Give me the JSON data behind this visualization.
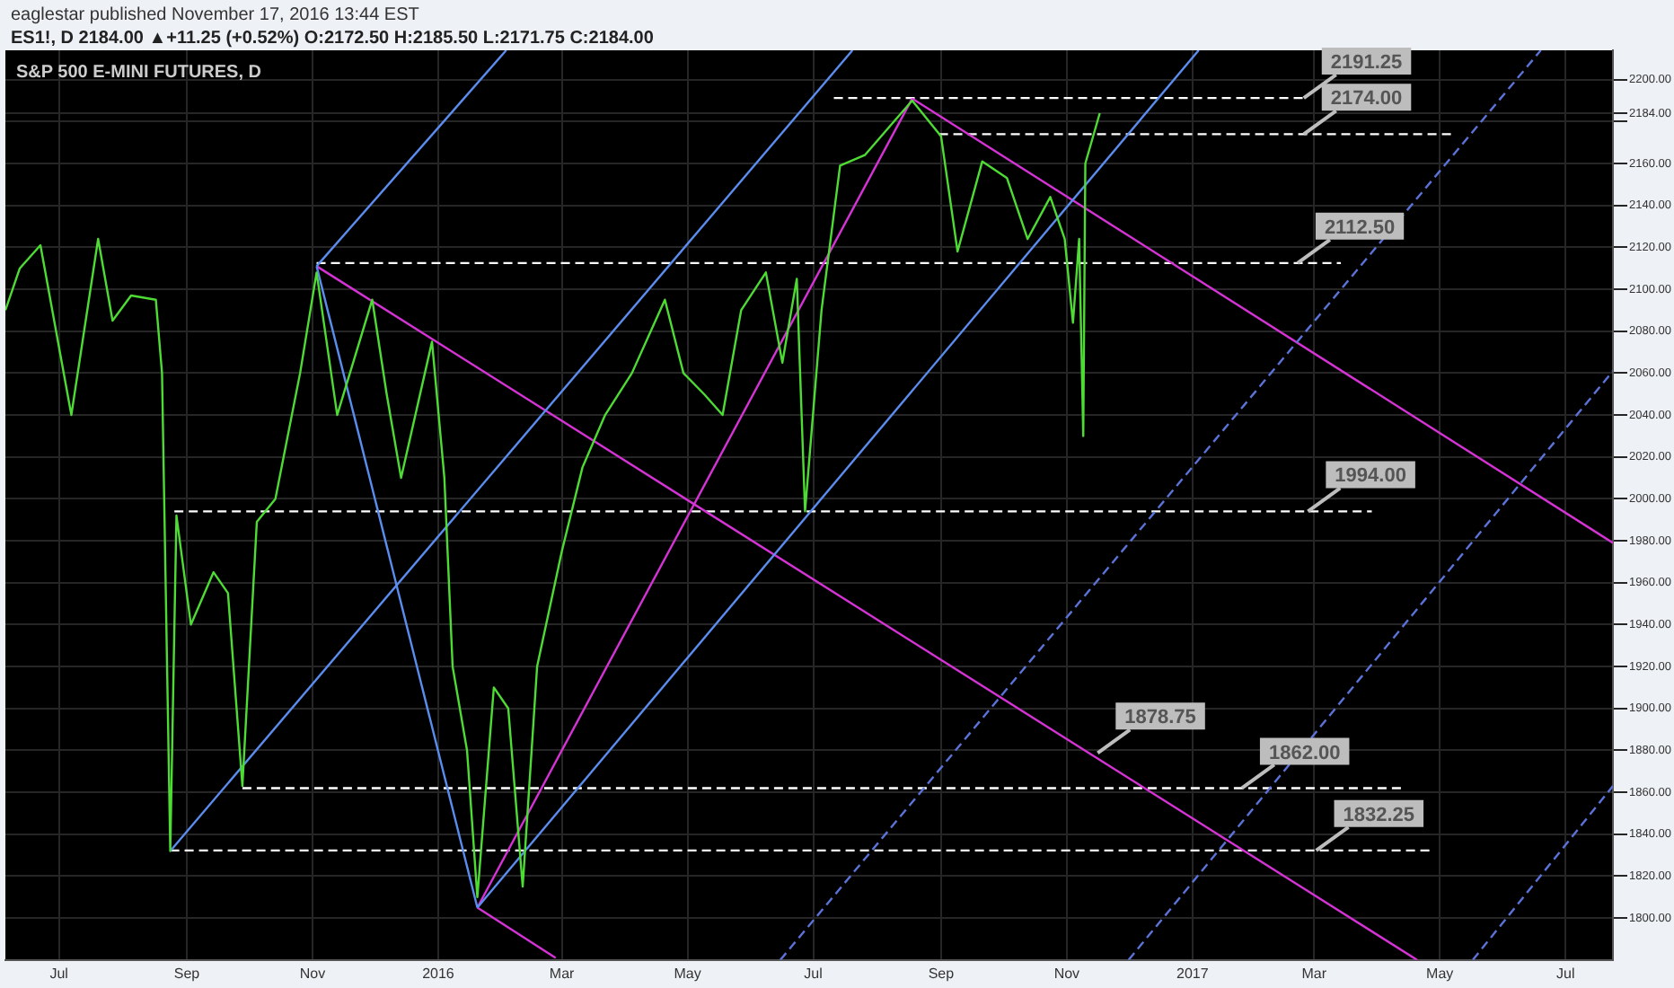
{
  "chart_data": {
    "type": "line",
    "title": "S&P 500 E-MINI FUTURES, D",
    "subtitle": "ES1!, D 2184.00 ▲+11.25 (+0.52%) O:2172.50 H:2185.50 L:2171.75 C:2184.00",
    "annotations": [
      "eaglestar published November 17, 2016 13:44 EST",
      {
        "text": "2191.25",
        "x": "2017-02-24",
        "y": 2191.25
      },
      {
        "text": "2174.00",
        "x": "2017-02-24",
        "y": 2174
      },
      {
        "text": "2112.50",
        "x": "2017-02-21",
        "y": 2112.5
      },
      {
        "text": "1994.00",
        "x": "2017-02-26",
        "y": 1994
      },
      {
        "text": "1878.75",
        "x": "2016-11-16",
        "y": 1878.75
      },
      {
        "text": "1862.00",
        "x": "2017-01-25",
        "y": 1862
      },
      {
        "text": "1832.25",
        "x": "2017-03-02",
        "y": 1832.25
      }
    ],
    "xlim": [
      "2015-06-05",
      "2017-07-24"
    ],
    "xticks": [
      {
        "value": "2015-07-01",
        "label": "Jul"
      },
      {
        "value": "2015-09-01",
        "label": "Sep"
      },
      {
        "value": "2015-11-01",
        "label": "Nov"
      },
      {
        "value": "2016-01-01",
        "label": "2016"
      },
      {
        "value": "2016-03-01",
        "label": "Mar"
      },
      {
        "value": "2016-05-01",
        "label": "May"
      },
      {
        "value": "2016-07-01",
        "label": "Jul"
      },
      {
        "value": "2016-09-01",
        "label": "Sep"
      },
      {
        "value": "2016-11-01",
        "label": "Nov"
      },
      {
        "value": "2017-01-01",
        "label": "2017"
      },
      {
        "value": "2017-03-01",
        "label": "Mar"
      },
      {
        "value": "2017-05-01",
        "label": "May"
      },
      {
        "value": "2017-07-01",
        "label": "Jul"
      }
    ],
    "ylim": [
      1780,
      2214
    ],
    "yticks": [
      {
        "value": 1800,
        "label": "1800.00"
      },
      {
        "value": 1820,
        "label": "1820.00"
      },
      {
        "value": 1840,
        "label": "1840.00"
      },
      {
        "value": 1860,
        "label": "1860.00"
      },
      {
        "value": 1880,
        "label": "1880.00"
      },
      {
        "value": 1900,
        "label": "1900.00"
      },
      {
        "value": 1920,
        "label": "1920.00"
      },
      {
        "value": 1940,
        "label": "1940.00"
      },
      {
        "value": 1960,
        "label": "1960.00"
      },
      {
        "value": 1980,
        "label": "1980.00"
      },
      {
        "value": 2000,
        "label": "2000.00"
      },
      {
        "value": 2020,
        "label": "2020.00"
      },
      {
        "value": 2040,
        "label": "2040.00"
      },
      {
        "value": 2060,
        "label": "2060.00"
      },
      {
        "value": 2080,
        "label": "2080.00"
      },
      {
        "value": 2100,
        "label": "2100.00"
      },
      {
        "value": 2120,
        "label": "2120.00"
      },
      {
        "value": 2140,
        "label": "2140.00"
      },
      {
        "value": 2160,
        "label": "2160.00"
      },
      {
        "value": 2180,
        "label": null
      },
      {
        "value": 2184,
        "label": "2184.00"
      },
      {
        "value": 2200,
        "label": "2200.00"
      }
    ],
    "grid": true,
    "legend": false,
    "marker": "none",
    "series": [
      {
        "color": "#4ddb34",
        "line_style": "solid",
        "x": [
          "2015-06-05",
          "2015-06-12",
          "2015-06-22",
          "2015-07-07",
          "2015-07-20",
          "2015-07-27",
          "2015-08-05",
          "2015-08-17",
          "2015-08-20",
          "2015-08-24",
          "2015-08-27",
          "2015-09-03",
          "2015-09-14",
          "2015-09-21",
          "2015-09-28",
          "2015-10-05",
          "2015-10-14",
          "2015-10-26",
          "2015-11-03",
          "2015-11-13",
          "2015-11-30",
          "2015-12-07",
          "2015-12-14",
          "2015-12-29",
          "2016-01-04",
          "2016-01-08",
          "2016-01-15",
          "2016-01-20",
          "2016-01-28",
          "2016-02-04",
          "2016-02-11",
          "2016-02-18",
          "2016-03-01",
          "2016-03-11",
          "2016-03-22",
          "2016-04-04",
          "2016-04-20",
          "2016-04-29",
          "2016-05-09",
          "2016-05-18",
          "2016-05-27",
          "2016-06-08",
          "2016-06-16",
          "2016-06-23",
          "2016-06-27",
          "2016-07-05",
          "2016-07-14",
          "2016-07-26",
          "2016-08-10",
          "2016-08-18",
          "2016-09-01",
          "2016-09-09",
          "2016-09-21",
          "2016-10-03",
          "2016-10-13",
          "2016-10-24",
          "2016-10-31",
          "2016-11-04",
          "2016-11-07",
          "2016-11-09",
          "2016-11-10",
          "2016-11-17"
        ],
        "values": [
          2090,
          2110,
          2121,
          2040,
          2124,
          2085,
          2097,
          2095,
          2060,
          1832,
          1992,
          1940,
          1965,
          1955,
          1863,
          1989,
          2000,
          2060,
          2108,
          2040,
          2095,
          2050,
          2010,
          2075,
          2010,
          1920,
          1880,
          1810,
          1910,
          1900,
          1815,
          1920,
          1975,
          2015,
          2040,
          2060,
          2095,
          2060,
          2050,
          2040,
          2090,
          2108,
          2065,
          2105,
          1994,
          2090,
          2159,
          2164,
          2181,
          2190,
          2173,
          2118,
          2161,
          2153,
          2124,
          2144,
          2124,
          2084,
          2124,
          2030,
          2160,
          2184
        ]
      },
      {
        "type": "line",
        "color": "#5b8def",
        "line_style": "solid",
        "x": [
          "2015-11-03",
          "2016-02-03"
        ],
        "values": [
          2111,
          2214
        ]
      },
      {
        "type": "line",
        "color": "#5b8def",
        "line_style": "solid",
        "x": [
          "2015-08-24",
          "2016-07-20"
        ],
        "values": [
          1832,
          2214
        ]
      },
      {
        "type": "line",
        "color": "#5b8def",
        "line_style": "solid",
        "x": [
          "2015-11-03",
          "2016-01-20"
        ],
        "values": [
          2111,
          1805
        ]
      },
      {
        "type": "line",
        "color": "#5b8def",
        "line_style": "solid",
        "x": [
          "2016-01-20",
          "2017-01-04"
        ],
        "values": [
          1805,
          2214
        ]
      },
      {
        "type": "line",
        "color": "#5b73d9",
        "line_style": "dashed",
        "x": [
          "2016-06-15",
          "2017-06-19"
        ],
        "values": [
          1780,
          2214
        ]
      },
      {
        "type": "line",
        "color": "#5b73d9",
        "line_style": "dashed",
        "x": [
          "2016-12-01",
          "2017-07-24"
        ],
        "values": [
          1780,
          2061
        ]
      },
      {
        "type": "line",
        "color": "#5b73d9",
        "line_style": "dashed",
        "x": [
          "2017-05-17",
          "2017-07-24"
        ],
        "values": [
          1780,
          1863
        ]
      },
      {
        "type": "line",
        "color": "#d633d6",
        "line_style": "solid",
        "x": [
          "2015-11-03",
          "2017-04-20"
        ],
        "values": [
          2111,
          1780
        ]
      },
      {
        "type": "line",
        "color": "#d633d6",
        "line_style": "solid",
        "x": [
          "2016-01-20",
          "2016-02-27"
        ],
        "values": [
          1805,
          1781
        ]
      },
      {
        "type": "line",
        "color": "#d633d6",
        "line_style": "solid",
        "x": [
          "2016-01-20",
          "2016-08-18"
        ],
        "values": [
          1805,
          2191
        ]
      },
      {
        "type": "line",
        "color": "#d633d6",
        "line_style": "solid",
        "x": [
          "2016-08-18",
          "2017-07-24"
        ],
        "values": [
          2191,
          1979
        ]
      },
      {
        "type": "line",
        "color": "#ffffff",
        "line_style": "dashed",
        "x": [
          "2016-07-11",
          "2017-02-26"
        ],
        "values": [
          2191.25,
          2191.25
        ]
      },
      {
        "type": "line",
        "color": "#ffffff",
        "line_style": "dashed",
        "x": [
          "2016-08-31",
          "2017-05-07"
        ],
        "values": [
          2174,
          2174
        ]
      },
      {
        "type": "line",
        "color": "#ffffff",
        "line_style": "dashed",
        "x": [
          "2015-11-03",
          "2017-03-14"
        ],
        "values": [
          2112.5,
          2112.5
        ]
      },
      {
        "type": "line",
        "color": "#ffffff",
        "line_style": "dashed",
        "x": [
          "2015-08-26",
          "2017-03-29"
        ],
        "values": [
          1994,
          1994
        ]
      },
      {
        "type": "line",
        "color": "#ffffff",
        "line_style": "dashed",
        "x": [
          "2015-09-28",
          "2017-04-13"
        ],
        "values": [
          1862,
          1862
        ]
      },
      {
        "type": "line",
        "color": "#ffffff",
        "line_style": "dashed",
        "x": [
          "2015-08-24",
          "2017-04-27"
        ],
        "values": [
          1832.25,
          1832.25
        ]
      }
    ]
  }
}
